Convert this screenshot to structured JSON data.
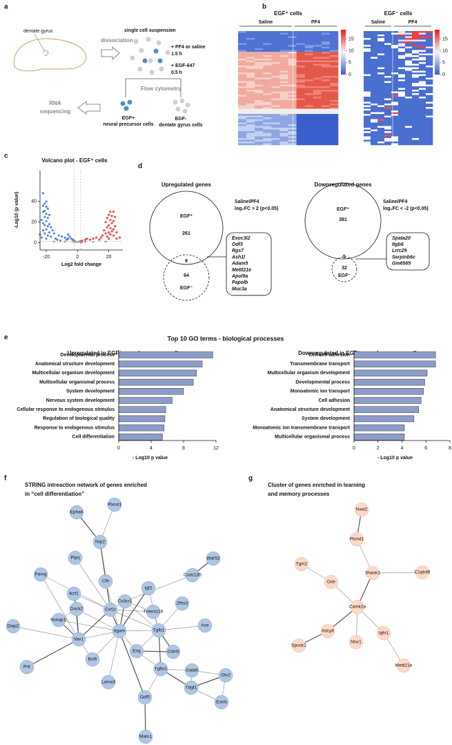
{
  "panel_labels": [
    "a",
    "b",
    "c",
    "d",
    "e",
    "f",
    "g"
  ],
  "schematic": {
    "region": "dentate gyrus",
    "step": "dissociation",
    "suspension": "single cell suspension",
    "treatment": "+ PF4 or saline",
    "treatment_time": "1.5 h",
    "staining": "+ EGF-647",
    "staining_time": "0.5 h",
    "sorting": "Flow cytometry",
    "positive": "EGF+",
    "positive_desc": "neural precursor cells",
    "negative": "EGF-",
    "negative_desc": "dentate gyrus cells",
    "readout": [
      "RNA",
      "sequencing"
    ]
  },
  "heatmaps": [
    {
      "title": "EGF⁺ cells",
      "groups": [
        "Saline",
        "PF4"
      ],
      "colorbar_lim": [
        0,
        19
      ],
      "colorbar_ticks": [
        15,
        10,
        5,
        0
      ]
    },
    {
      "title": "EGF⁻ cells",
      "groups": [
        "Saline",
        "PF4"
      ],
      "colorbar_lim": [
        0,
        19
      ],
      "colorbar_ticks": [
        15,
        10,
        5,
        0
      ]
    }
  ],
  "venns": [
    {
      "title": "Upregulated genes",
      "comparison": "Saline/PF4",
      "criterion": "log₂FC > 2 (p<0.05)",
      "outer_label": "EGF⁺",
      "outer_count": 261,
      "overlap": 9,
      "inner_count": 64,
      "inner_label": "EGF⁻",
      "genes": [
        "Exoc3l2",
        "Odf3",
        "Rgs7",
        "Ash1l",
        "Adam5",
        "Mettl21e",
        "Apol9a",
        "Papolb",
        "Muc3a"
      ]
    },
    {
      "title": "Downregulated genes",
      "comparison": "Saline/PF4",
      "criterion": "log₂FC < -2 (p<0.05)",
      "outer_label": "EGF⁺",
      "outer_count": 381,
      "overlap": 5,
      "inner_count": 32,
      "inner_label": "EGF⁻",
      "genes": [
        "Spata20",
        "Itgb6",
        "Lrrc29",
        "Serpinb6c",
        "Gm6565"
      ]
    }
  ],
  "go_title": "Top 10 GO terms - biological processes",
  "networks": [
    {
      "title": [
        "STRING intreaction network of genes enriched",
        "in “cell differentiation”"
      ],
      "nodes": [
        "Epha6",
        "Plxnd1",
        "Nrp2",
        "Ptprj",
        "Wdr52",
        "Cfh",
        "Ccdc135",
        "Parvg",
        "Igf2",
        "Ikzf1",
        "Cx3cr1",
        "Zfhx3",
        "Csf1r",
        "Tmem119",
        "Dock2",
        "Nckap1l",
        "Diap2",
        "Tgfb1",
        "Ace",
        "Itgam",
        "Vav1",
        "Eng",
        "Cldn5",
        "Bcl6",
        "Tgfbr1",
        "Gata6",
        "Otx2",
        "Prlr",
        "Lama3",
        "Tdgf1",
        "Gdf5",
        "Esrrb",
        "Matn1"
      ]
    },
    {
      "title": [
        "Cluster of genes enriched in learning",
        "and memory processes"
      ],
      "nodes": [
        "Nwd2",
        "Ptchd1",
        "Tgm2",
        "Shank1",
        "C1qtnf9",
        "Oxtr",
        "Camk2a",
        "Adcy8",
        "Igfn1",
        "Ntsr1",
        "Spock1",
        "Mettl21e"
      ]
    }
  ],
  "chart_data": [
    {
      "type": "scatter",
      "title": "Volcano plot - EGF⁺ cells",
      "x_label": "Log2 fold change",
      "y_label": "-Log10 (p value)",
      "xlim": [
        -24,
        29
      ],
      "ylim": [
        -7,
        70
      ],
      "xticks": [
        -20,
        0,
        20
      ],
      "yticks": [
        0,
        20,
        40
      ],
      "hlines": [
        1.3
      ],
      "vlines": [
        -2,
        2
      ],
      "series": [
        {
          "color": "#3b6fd6",
          "x": [
            -22,
            -20,
            -21,
            -22,
            -20,
            -19,
            -21,
            -22,
            -20,
            -18,
            -21,
            -19,
            -23,
            -20,
            -22,
            -18,
            -21,
            -19,
            -17,
            -20,
            -22,
            -16,
            -18,
            -21,
            -15,
            -19,
            -17,
            -12,
            -10,
            -8,
            -6,
            -5,
            -6,
            -4,
            -3,
            -14,
            -23,
            -20,
            -24,
            -13,
            -2,
            -7,
            -11
          ],
          "y": [
            48,
            40,
            38,
            36,
            35,
            33,
            31,
            30,
            28,
            27,
            25,
            24,
            22,
            21,
            19,
            18,
            17,
            16,
            15,
            13,
            12,
            12,
            10,
            9,
            9,
            7,
            6,
            7,
            6,
            5,
            8,
            6,
            4,
            4,
            3,
            4,
            5,
            4,
            8,
            3,
            2,
            3,
            2
          ]
        },
        {
          "color": "#e03030",
          "x": [
            21,
            23,
            20,
            22,
            24,
            19,
            21,
            23,
            18,
            22,
            20,
            24,
            19,
            21,
            23,
            17,
            22,
            20,
            25,
            18,
            21,
            16,
            23,
            19,
            15,
            12,
            10,
            8,
            5,
            3,
            6,
            14,
            27,
            25,
            20,
            2
          ],
          "y": [
            30,
            30,
            27,
            26,
            25,
            24,
            22,
            21,
            20,
            19,
            17,
            16,
            15,
            14,
            13,
            12,
            11,
            10,
            10,
            9,
            8,
            7,
            7,
            6,
            5,
            5,
            4,
            3,
            3,
            2,
            4,
            3,
            5,
            4,
            4,
            1.5
          ]
        },
        {
          "color": "#a0a0a0",
          "x": [
            -1,
            0,
            1,
            -2,
            3,
            -3,
            2,
            -15,
            10,
            18,
            -8,
            5
          ],
          "y": [
            1,
            0.5,
            1.2,
            0.8,
            0.5,
            1.5,
            0.3,
            1,
            1,
            1,
            1,
            1
          ]
        }
      ]
    },
    {
      "type": "bar",
      "orientation": "horizontal",
      "subtitle": "Upregulated in EGF⁺ neural precursor cells",
      "x_label": "- Log10 p value",
      "color": "#8e9ccc",
      "categories": [
        "Developmental process",
        "Anatomical structure development",
        "Multicellular organism development",
        "Multicellular organismal process",
        "System development",
        "Nervous system development",
        "Cellular response to endogenous stimulus",
        "Regulation of biological quality",
        "Response to endogenous stimulus",
        "Cell differentiation"
      ],
      "values": [
        11.6,
        10.3,
        9.6,
        9.2,
        8.0,
        6.6,
        5.8,
        5.7,
        5.6,
        5.4
      ],
      "xlim": [
        0,
        12
      ],
      "xticks": [
        0,
        4,
        8,
        12
      ]
    },
    {
      "type": "bar",
      "orientation": "horizontal",
      "subtitle": "Downregulated in EGF⁺ neural precursor cells",
      "x_label": "- Log10 p value",
      "color": "#8e9ccc",
      "categories": [
        "Cell-cell adhesion",
        "Transmembrane transport",
        "Multicellular organism development",
        "Developmental process",
        "Monoatomic ion transport",
        "Cell adhesion",
        "Anatomical structure development",
        "System development",
        "Monoatomic ion transmembrane transport",
        "Multicellular organismal process"
      ],
      "values": [
        6.8,
        6.8,
        6.1,
        5.9,
        5.8,
        5.6,
        5.4,
        5.0,
        4.2,
        4.2
      ],
      "xlim": [
        0,
        8
      ],
      "xticks": [
        0,
        2,
        4,
        6,
        8
      ]
    }
  ]
}
